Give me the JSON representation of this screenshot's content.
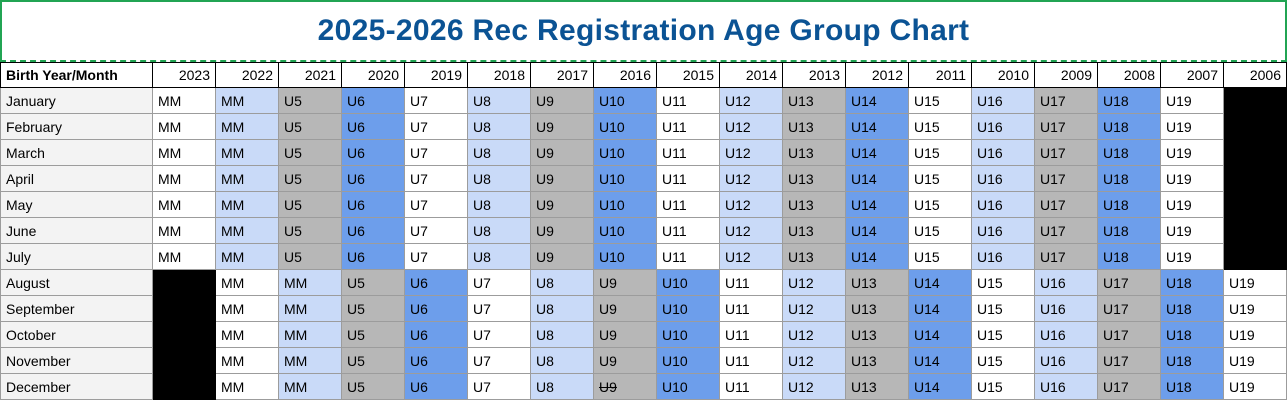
{
  "title": "2025-2026 Rec Registration Age Group Chart",
  "colors": {
    "title_text": "#0b5394",
    "marquee_green": "#21a453",
    "band_white": "#ffffff",
    "band_lightblue": "#c9daf8",
    "band_gray": "#b7b7b7",
    "band_blue": "#6d9eeb",
    "band_black": "#000000",
    "month_col_bg": "#f3f3f3"
  },
  "table": {
    "corner_header": "Birth Year/Month",
    "year_headers": [
      "2023",
      "2022",
      "2021",
      "2020",
      "2019",
      "2018",
      "2017",
      "2016",
      "2015",
      "2014",
      "2013",
      "2012",
      "2011",
      "2010",
      "2009",
      "2008",
      "2007",
      "2006"
    ],
    "rows": [
      {
        "month": "January",
        "cells": [
          [
            "MM",
            "white"
          ],
          [
            "MM",
            "lightblue"
          ],
          [
            "U5",
            "gray"
          ],
          [
            "U6",
            "blue"
          ],
          [
            "U7",
            "white"
          ],
          [
            "U8",
            "lightblue"
          ],
          [
            "U9",
            "gray"
          ],
          [
            "U10",
            "blue"
          ],
          [
            "U11",
            "white"
          ],
          [
            "U12",
            "lightblue"
          ],
          [
            "U13",
            "gray"
          ],
          [
            "U14",
            "blue"
          ],
          [
            "U15",
            "white"
          ],
          [
            "U16",
            "lightblue"
          ],
          [
            "U17",
            "gray"
          ],
          [
            "U18",
            "blue"
          ],
          [
            "U19",
            "white"
          ],
          [
            "",
            "black"
          ]
        ]
      },
      {
        "month": "February",
        "cells": [
          [
            "MM",
            "white"
          ],
          [
            "MM",
            "lightblue"
          ],
          [
            "U5",
            "gray"
          ],
          [
            "U6",
            "blue"
          ],
          [
            "U7",
            "white"
          ],
          [
            "U8",
            "lightblue"
          ],
          [
            "U9",
            "gray"
          ],
          [
            "U10",
            "blue"
          ],
          [
            "U11",
            "white"
          ],
          [
            "U12",
            "lightblue"
          ],
          [
            "U13",
            "gray"
          ],
          [
            "U14",
            "blue"
          ],
          [
            "U15",
            "white"
          ],
          [
            "U16",
            "lightblue"
          ],
          [
            "U17",
            "gray"
          ],
          [
            "U18",
            "blue"
          ],
          [
            "U19",
            "white"
          ],
          [
            "",
            "black"
          ]
        ]
      },
      {
        "month": "March",
        "cells": [
          [
            "MM",
            "white"
          ],
          [
            "MM",
            "lightblue"
          ],
          [
            "U5",
            "gray"
          ],
          [
            "U6",
            "blue"
          ],
          [
            "U7",
            "white"
          ],
          [
            "U8",
            "lightblue"
          ],
          [
            "U9",
            "gray"
          ],
          [
            "U10",
            "blue"
          ],
          [
            "U11",
            "white"
          ],
          [
            "U12",
            "lightblue"
          ],
          [
            "U13",
            "gray"
          ],
          [
            "U14",
            "blue"
          ],
          [
            "U15",
            "white"
          ],
          [
            "U16",
            "lightblue"
          ],
          [
            "U17",
            "gray"
          ],
          [
            "U18",
            "blue"
          ],
          [
            "U19",
            "white"
          ],
          [
            "",
            "black"
          ]
        ]
      },
      {
        "month": "April",
        "cells": [
          [
            "MM",
            "white"
          ],
          [
            "MM",
            "lightblue"
          ],
          [
            "U5",
            "gray"
          ],
          [
            "U6",
            "blue"
          ],
          [
            "U7",
            "white"
          ],
          [
            "U8",
            "lightblue"
          ],
          [
            "U9",
            "gray"
          ],
          [
            "U10",
            "blue"
          ],
          [
            "U11",
            "white"
          ],
          [
            "U12",
            "lightblue"
          ],
          [
            "U13",
            "gray"
          ],
          [
            "U14",
            "blue"
          ],
          [
            "U15",
            "white"
          ],
          [
            "U16",
            "lightblue"
          ],
          [
            "U17",
            "gray"
          ],
          [
            "U18",
            "blue"
          ],
          [
            "U19",
            "white"
          ],
          [
            "",
            "black"
          ]
        ]
      },
      {
        "month": "May",
        "cells": [
          [
            "MM",
            "white"
          ],
          [
            "MM",
            "lightblue"
          ],
          [
            "U5",
            "gray"
          ],
          [
            "U6",
            "blue"
          ],
          [
            "U7",
            "white"
          ],
          [
            "U8",
            "lightblue"
          ],
          [
            "U9",
            "gray"
          ],
          [
            "U10",
            "blue"
          ],
          [
            "U11",
            "white"
          ],
          [
            "U12",
            "lightblue"
          ],
          [
            "U13",
            "gray"
          ],
          [
            "U14",
            "blue"
          ],
          [
            "U15",
            "white"
          ],
          [
            "U16",
            "lightblue"
          ],
          [
            "U17",
            "gray"
          ],
          [
            "U18",
            "blue"
          ],
          [
            "U19",
            "white"
          ],
          [
            "",
            "black"
          ]
        ]
      },
      {
        "month": "June",
        "cells": [
          [
            "MM",
            "white"
          ],
          [
            "MM",
            "lightblue"
          ],
          [
            "U5",
            "gray"
          ],
          [
            "U6",
            "blue"
          ],
          [
            "U7",
            "white"
          ],
          [
            "U8",
            "lightblue"
          ],
          [
            "U9",
            "gray"
          ],
          [
            "U10",
            "blue"
          ],
          [
            "U11",
            "white"
          ],
          [
            "U12",
            "lightblue"
          ],
          [
            "U13",
            "gray"
          ],
          [
            "U14",
            "blue"
          ],
          [
            "U15",
            "white"
          ],
          [
            "U16",
            "lightblue"
          ],
          [
            "U17",
            "gray"
          ],
          [
            "U18",
            "blue"
          ],
          [
            "U19",
            "white"
          ],
          [
            "",
            "black"
          ]
        ]
      },
      {
        "month": "July",
        "cells": [
          [
            "MM",
            "white"
          ],
          [
            "MM",
            "lightblue"
          ],
          [
            "U5",
            "gray"
          ],
          [
            "U6",
            "blue"
          ],
          [
            "U7",
            "white"
          ],
          [
            "U8",
            "lightblue"
          ],
          [
            "U9",
            "gray"
          ],
          [
            "U10",
            "blue"
          ],
          [
            "U11",
            "white"
          ],
          [
            "U12",
            "lightblue"
          ],
          [
            "U13",
            "gray"
          ],
          [
            "U14",
            "blue"
          ],
          [
            "U15",
            "white"
          ],
          [
            "U16",
            "lightblue"
          ],
          [
            "U17",
            "gray"
          ],
          [
            "U18",
            "blue"
          ],
          [
            "U19",
            "white"
          ],
          [
            "",
            "black"
          ]
        ]
      },
      {
        "month": "August",
        "cells": [
          [
            "",
            "black"
          ],
          [
            "MM",
            "white"
          ],
          [
            "MM",
            "lightblue"
          ],
          [
            "U5",
            "gray"
          ],
          [
            "U6",
            "blue"
          ],
          [
            "U7",
            "white"
          ],
          [
            "U8",
            "lightblue"
          ],
          [
            "U9",
            "gray"
          ],
          [
            "U10",
            "blue"
          ],
          [
            "U11",
            "white"
          ],
          [
            "U12",
            "lightblue"
          ],
          [
            "U13",
            "gray"
          ],
          [
            "U14",
            "blue"
          ],
          [
            "U15",
            "white"
          ],
          [
            "U16",
            "lightblue"
          ],
          [
            "U17",
            "gray"
          ],
          [
            "U18",
            "blue"
          ],
          [
            "U19",
            "white"
          ]
        ]
      },
      {
        "month": "September",
        "cells": [
          [
            "",
            "black"
          ],
          [
            "MM",
            "white"
          ],
          [
            "MM",
            "lightblue"
          ],
          [
            "U5",
            "gray"
          ],
          [
            "U6",
            "blue"
          ],
          [
            "U7",
            "white"
          ],
          [
            "U8",
            "lightblue"
          ],
          [
            "U9",
            "gray"
          ],
          [
            "U10",
            "blue"
          ],
          [
            "U11",
            "white"
          ],
          [
            "U12",
            "lightblue"
          ],
          [
            "U13",
            "gray"
          ],
          [
            "U14",
            "blue"
          ],
          [
            "U15",
            "white"
          ],
          [
            "U16",
            "lightblue"
          ],
          [
            "U17",
            "gray"
          ],
          [
            "U18",
            "blue"
          ],
          [
            "U19",
            "white"
          ]
        ]
      },
      {
        "month": "October",
        "cells": [
          [
            "",
            "black"
          ],
          [
            "MM",
            "white"
          ],
          [
            "MM",
            "lightblue"
          ],
          [
            "U5",
            "gray"
          ],
          [
            "U6",
            "blue"
          ],
          [
            "U7",
            "white"
          ],
          [
            "U8",
            "lightblue"
          ],
          [
            "U9",
            "gray"
          ],
          [
            "U10",
            "blue"
          ],
          [
            "U11",
            "white"
          ],
          [
            "U12",
            "lightblue"
          ],
          [
            "U13",
            "gray"
          ],
          [
            "U14",
            "blue"
          ],
          [
            "U15",
            "white"
          ],
          [
            "U16",
            "lightblue"
          ],
          [
            "U17",
            "gray"
          ],
          [
            "U18",
            "blue"
          ],
          [
            "U19",
            "white"
          ]
        ]
      },
      {
        "month": "November",
        "cells": [
          [
            "",
            "black"
          ],
          [
            "MM",
            "white"
          ],
          [
            "MM",
            "lightblue"
          ],
          [
            "U5",
            "gray"
          ],
          [
            "U6",
            "blue"
          ],
          [
            "U7",
            "white"
          ],
          [
            "U8",
            "lightblue"
          ],
          [
            "U9",
            "gray"
          ],
          [
            "U10",
            "blue"
          ],
          [
            "U11",
            "white"
          ],
          [
            "U12",
            "lightblue"
          ],
          [
            "U13",
            "gray"
          ],
          [
            "U14",
            "blue"
          ],
          [
            "U15",
            "white"
          ],
          [
            "U16",
            "lightblue"
          ],
          [
            "U17",
            "gray"
          ],
          [
            "U18",
            "blue"
          ],
          [
            "U19",
            "white"
          ]
        ]
      },
      {
        "month": "December",
        "cells": [
          [
            "",
            "black"
          ],
          [
            "MM",
            "white"
          ],
          [
            "MM",
            "lightblue"
          ],
          [
            "U5",
            "gray"
          ],
          [
            "U6",
            "blue"
          ],
          [
            "U7",
            "white"
          ],
          [
            "U8",
            "lightblue"
          ],
          [
            "U9",
            "gray",
            "strike"
          ],
          [
            "U10",
            "blue"
          ],
          [
            "U11",
            "white"
          ],
          [
            "U12",
            "lightblue"
          ],
          [
            "U13",
            "gray"
          ],
          [
            "U14",
            "blue"
          ],
          [
            "U15",
            "white"
          ],
          [
            "U16",
            "lightblue"
          ],
          [
            "U17",
            "gray"
          ],
          [
            "U18",
            "blue"
          ],
          [
            "U19",
            "white"
          ]
        ]
      }
    ]
  }
}
